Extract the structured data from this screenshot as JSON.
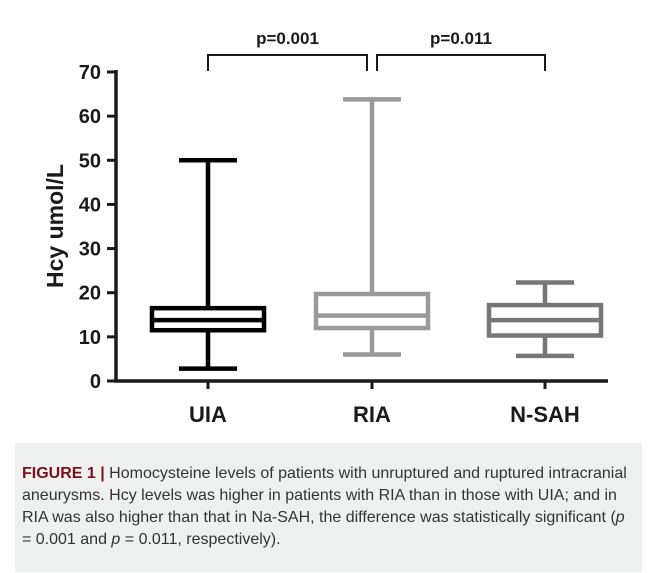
{
  "chart_data": {
    "type": "box",
    "ylabel": "Hcy umol/L",
    "ylim": [
      0,
      70
    ],
    "yticks": [
      0,
      10,
      20,
      30,
      40,
      50,
      60,
      70
    ],
    "categories": [
      "UIA",
      "RIA",
      "N-SAH"
    ],
    "boxes": [
      {
        "category": "UIA",
        "min": 2.8,
        "q1": 11.5,
        "median": 13.8,
        "q3": 16.5,
        "max": 50.0,
        "color": "#000000"
      },
      {
        "category": "RIA",
        "min": 6.0,
        "q1": 12.0,
        "median": 14.8,
        "q3": 19.7,
        "max": 63.8,
        "color": "#9a9a9a"
      },
      {
        "category": "N-SAH",
        "min": 5.7,
        "q1": 10.3,
        "median": 13.8,
        "q3": 17.2,
        "max": 22.3,
        "color": "#777777"
      }
    ],
    "comparisons": [
      {
        "from": "UIA",
        "to": "RIA",
        "label": "p=0.001"
      },
      {
        "from": "RIA",
        "to": "N-SAH",
        "label": "p=0.011"
      }
    ]
  },
  "caption": {
    "lead": "FIGURE 1 |",
    "text_1": " Homocysteine levels of patients with unruptured and ruptured intracranial aneurysms. Hcy levels was higher in patients with RIA than in those with UIA; and in RIA was also higher than that in Na-SAH, the difference was statistically significant (",
    "p_symbol": "p",
    "text_2": " = 0.001 and ",
    "text_3": " = 0.011, respectively)."
  }
}
